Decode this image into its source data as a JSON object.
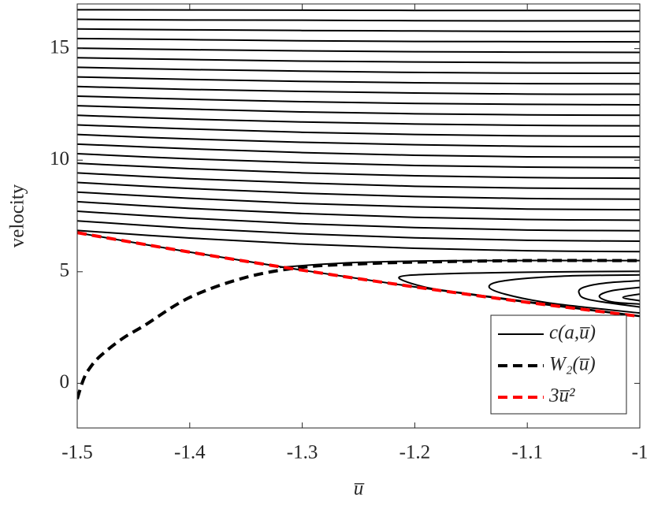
{
  "chart_data": {
    "type": "line",
    "xlabel": "u̅",
    "ylabel": "velocity",
    "xlim": [
      -1.5,
      -1
    ],
    "ylim": [
      -2,
      17
    ],
    "xticks": [
      -1.5,
      -1.4,
      -1.3,
      -1.2,
      -1.1,
      -1
    ],
    "yticks": [
      0,
      5,
      10,
      15
    ],
    "grid": false,
    "legend": "southeast",
    "series": [
      {
        "name": "c(a,u̅)",
        "color": "#000000",
        "dashed": false,
        "x": [
          -1.5,
          -1.4,
          -1.3,
          -1.2,
          -1.1,
          -1,
          null,
          -1.5,
          -1.4,
          -1.3,
          -1.2,
          -1.1,
          -1,
          null,
          -1.5,
          -1.4,
          -1.3,
          -1.2,
          -1.1,
          -1,
          null,
          -1.5,
          -1.4,
          -1.3,
          -1.2,
          -1.1,
          -1,
          null,
          -1.5,
          -1.4,
          -1.3,
          -1.2,
          -1.1,
          -1,
          null,
          -1.5,
          -1.4,
          -1.3,
          -1.2,
          -1.1,
          -1,
          null,
          -1.5,
          -1.4,
          -1.3,
          -1.2,
          -1.1,
          -1,
          null,
          -1.5,
          -1.4,
          -1.3,
          -1.2,
          -1.1,
          -1,
          null,
          -1.5,
          -1.4,
          -1.3,
          -1.2,
          -1.1,
          -1,
          null,
          -1.5,
          -1.4,
          -1.3,
          -1.2,
          -1.1,
          -1,
          null,
          -1.5,
          -1.4,
          -1.3,
          -1.2,
          -1.1,
          -1,
          null,
          -1.5,
          -1.4,
          -1.3,
          -1.2,
          -1.1,
          -1,
          null,
          -1.5,
          -1.4,
          -1.3,
          -1.2,
          -1.1,
          -1,
          null,
          -1.5,
          -1.4,
          -1.3,
          -1.2,
          -1.1,
          -1,
          null,
          -1.5,
          -1.4,
          -1.3,
          -1.2,
          -1.1,
          -1,
          null,
          -1.5,
          -1.4,
          -1.3,
          -1.2,
          -1.1,
          -1,
          null,
          -1.5,
          -1.4,
          -1.3,
          -1.2,
          -1.1,
          -1,
          null,
          -1.5,
          -1.4,
          -1.3,
          -1.2,
          -1.1,
          -1,
          null,
          -1.5,
          -1.4,
          -1.3,
          -1.2,
          -1.1,
          -1,
          null,
          -1.5,
          -1.4,
          -1.3,
          -1.2,
          -1.1,
          -1,
          null,
          -1.5,
          -1.4,
          -1.3,
          -1.2,
          -1.1,
          -1,
          null,
          -1.5,
          -1.4,
          -1.3,
          -1.2,
          -1.1,
          -1,
          null,
          -1.5,
          -1.4,
          -1.3,
          -1.2,
          -1.1,
          -1,
          null,
          -1.5,
          -1.4,
          -1.3,
          -1.2,
          -1.1,
          -1,
          null,
          -1.5,
          -1.4,
          -1.3,
          -1.2,
          -1.1,
          -1,
          null,
          -1.32,
          -1.25,
          -1.15,
          -1,
          null,
          -1,
          -1.1,
          -1.18,
          -1.214,
          -1.19,
          -1.15,
          -1.1,
          -1,
          null,
          -1,
          -1.07,
          -1.12,
          -1.134,
          -1.12,
          -1.08,
          -1,
          null,
          -1,
          -1.03,
          -1.05,
          -1.054,
          -1.045,
          -1,
          null,
          -1,
          -1.025,
          -1.036,
          -1.025,
          -1,
          null,
          -1,
          -1.015,
          -1
        ],
        "values": [
          6.85,
          6.51,
          6.24,
          6.05,
          5.94,
          5.9,
          null,
          7.28,
          6.95,
          6.7,
          6.52,
          6.41,
          6.37,
          null,
          7.71,
          7.4,
          7.15,
          6.98,
          6.87,
          6.84,
          null,
          8.14,
          7.84,
          7.61,
          7.44,
          7.34,
          7.31,
          null,
          8.57,
          8.29,
          8.06,
          7.91,
          7.81,
          7.78,
          null,
          9,
          8.73,
          8.52,
          8.37,
          8.28,
          8.25,
          null,
          9.43,
          9.17,
          8.98,
          8.83,
          8.75,
          8.72,
          null,
          9.86,
          9.62,
          9.43,
          9.3,
          9.22,
          9.19,
          null,
          10.29,
          10.06,
          9.89,
          9.76,
          9.69,
          9.66,
          null,
          10.72,
          10.51,
          10.34,
          10.22,
          10.15,
          10.13,
          null,
          11.15,
          10.95,
          10.8,
          10.69,
          10.62,
          10.6,
          null,
          11.58,
          11.4,
          11.25,
          11.15,
          11.09,
          11.07,
          null,
          12.01,
          11.84,
          11.71,
          11.62,
          11.56,
          11.54,
          null,
          12.44,
          12.29,
          12.16,
          12.08,
          12.03,
          12.01,
          null,
          12.87,
          12.73,
          12.62,
          12.54,
          12.5,
          12.48,
          null,
          13.3,
          13.17,
          13.08,
          13.01,
          12.96,
          12.95,
          null,
          13.73,
          13.62,
          13.53,
          13.47,
          13.43,
          13.42,
          null,
          14.16,
          14.06,
          13.99,
          13.93,
          13.9,
          13.89,
          null,
          14.59,
          14.51,
          14.44,
          14.4,
          14.37,
          14.36,
          null,
          15.02,
          14.95,
          14.9,
          14.86,
          14.84,
          14.83,
          null,
          15.45,
          15.4,
          15.35,
          15.32,
          15.31,
          15.3,
          null,
          15.88,
          15.84,
          15.81,
          15.79,
          15.77,
          15.77,
          null,
          16.31,
          16.28,
          16.27,
          16.25,
          16.24,
          16.24,
          null,
          16.74,
          16.73,
          16.72,
          16.71,
          16.71,
          16.71,
          null,
          6.75,
          5.88,
          5.07,
          4.32,
          3.63,
          3,
          null,
          5.2,
          5.42,
          5.5,
          5.5,
          null,
          5.02,
          4.98,
          4.9,
          4.75,
          4.3,
          4,
          3.66,
          3.02,
          null,
          4.86,
          4.8,
          4.6,
          4.33,
          4,
          3.6,
          3.15,
          null,
          4.6,
          4.5,
          4.3,
          4.05,
          3.75,
          3.42,
          null,
          4.3,
          4.15,
          3.9,
          3.65,
          3.55,
          null,
          4,
          3.85,
          3.7
        ]
      },
      {
        "name": "W₂(u̅)",
        "color": "#000000",
        "dashed": true,
        "x": [
          -1.5,
          -1.495,
          -1.49,
          -1.48,
          -1.46,
          -1.44,
          -1.4,
          -1.35,
          -1.3,
          -1.25,
          -1.2,
          -1.1,
          -1
        ],
        "values": [
          -0.7,
          0.1,
          0.6,
          1.2,
          2,
          2.6,
          3.85,
          4.75,
          5.2,
          5.35,
          5.43,
          5.5,
          5.5
        ]
      },
      {
        "name": "3u̅²",
        "color": "#ff0000",
        "dashed": true,
        "x": [
          -1.5,
          -1.4,
          -1.3,
          -1.2,
          -1.1,
          -1
        ],
        "values": [
          6.75,
          5.88,
          5.07,
          4.32,
          3.63,
          3
        ]
      }
    ]
  }
}
